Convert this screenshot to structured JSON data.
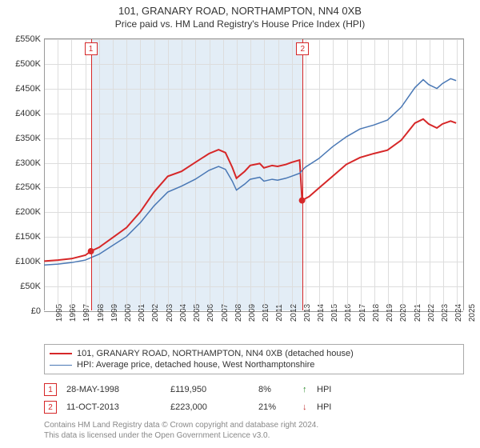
{
  "title_line1": "101, GRANARY ROAD, NORTHAMPTON, NN4 0XB",
  "title_line2": "Price paid vs. HM Land Registry's House Price Index (HPI)",
  "chart": {
    "type": "line",
    "background_color": "#ffffff",
    "grid_color": "#dddddd",
    "axis_color": "#999999",
    "x_years": [
      1995,
      1996,
      1997,
      1998,
      1999,
      2000,
      2001,
      2002,
      2003,
      2004,
      2005,
      2006,
      2007,
      2008,
      2009,
      2010,
      2011,
      2012,
      2013,
      2014,
      2015,
      2016,
      2017,
      2018,
      2019,
      2020,
      2021,
      2022,
      2023,
      2024,
      2025
    ],
    "xlim": [
      1995,
      2025.5
    ],
    "ylim": [
      0,
      550000
    ],
    "ytick_step": 50000,
    "yticks": [
      "£0",
      "£50K",
      "£100K",
      "£150K",
      "£200K",
      "£250K",
      "£300K",
      "£350K",
      "£400K",
      "£450K",
      "£500K",
      "£550K"
    ],
    "band_color": "#e3edf6",
    "band_from_year": 1998.4,
    "band_to_year": 2013.8,
    "series": [
      {
        "name": "property",
        "label": "101, GRANARY ROAD, NORTHAMPTON, NN4 0XB (detached house)",
        "color": "#d62728",
        "line_width": 2,
        "points": [
          [
            1995.0,
            100
          ],
          [
            1996.0,
            102
          ],
          [
            1997.0,
            105
          ],
          [
            1998.0,
            112
          ],
          [
            1998.4,
            120
          ],
          [
            1999.0,
            128
          ],
          [
            2000.0,
            148
          ],
          [
            2001.0,
            168
          ],
          [
            2002.0,
            200
          ],
          [
            2003.0,
            240
          ],
          [
            2004.0,
            272
          ],
          [
            2005.0,
            282
          ],
          [
            2006.0,
            300
          ],
          [
            2007.0,
            318
          ],
          [
            2007.7,
            326
          ],
          [
            2008.2,
            320
          ],
          [
            2008.7,
            290
          ],
          [
            2009.0,
            268
          ],
          [
            2009.6,
            282
          ],
          [
            2010.0,
            294
          ],
          [
            2010.7,
            298
          ],
          [
            2011.0,
            289
          ],
          [
            2011.6,
            294
          ],
          [
            2012.0,
            292
          ],
          [
            2012.6,
            296
          ],
          [
            2013.0,
            300
          ],
          [
            2013.6,
            305
          ],
          [
            2013.78,
            223
          ],
          [
            2014.3,
            231
          ],
          [
            2015.0,
            248
          ],
          [
            2016.0,
            272
          ],
          [
            2017.0,
            296
          ],
          [
            2018.0,
            310
          ],
          [
            2019.0,
            318
          ],
          [
            2020.0,
            325
          ],
          [
            2021.0,
            345
          ],
          [
            2022.0,
            380
          ],
          [
            2022.6,
            388
          ],
          [
            2023.0,
            378
          ],
          [
            2023.6,
            370
          ],
          [
            2024.0,
            378
          ],
          [
            2024.6,
            384
          ],
          [
            2025.0,
            380
          ]
        ],
        "markers": [
          {
            "year": 1998.4,
            "value": 120,
            "label": "1"
          },
          {
            "year": 2013.78,
            "value": 223,
            "label": "2"
          }
        ]
      },
      {
        "name": "hpi",
        "label": "HPI: Average price, detached house, West Northamptonshire",
        "color": "#4a78b5",
        "line_width": 1.5,
        "points": [
          [
            1995.0,
            92
          ],
          [
            1996.0,
            94
          ],
          [
            1997.0,
            97
          ],
          [
            1998.0,
            102
          ],
          [
            1999.0,
            114
          ],
          [
            2000.0,
            132
          ],
          [
            2001.0,
            150
          ],
          [
            2002.0,
            178
          ],
          [
            2003.0,
            212
          ],
          [
            2004.0,
            240
          ],
          [
            2005.0,
            252
          ],
          [
            2006.0,
            266
          ],
          [
            2007.0,
            284
          ],
          [
            2007.7,
            292
          ],
          [
            2008.2,
            286
          ],
          [
            2008.7,
            262
          ],
          [
            2009.0,
            244
          ],
          [
            2009.6,
            256
          ],
          [
            2010.0,
            266
          ],
          [
            2010.7,
            270
          ],
          [
            2011.0,
            262
          ],
          [
            2011.6,
            266
          ],
          [
            2012.0,
            264
          ],
          [
            2012.6,
            268
          ],
          [
            2013.0,
            272
          ],
          [
            2013.6,
            278
          ],
          [
            2014.0,
            290
          ],
          [
            2015.0,
            308
          ],
          [
            2016.0,
            332
          ],
          [
            2017.0,
            352
          ],
          [
            2018.0,
            368
          ],
          [
            2019.0,
            376
          ],
          [
            2020.0,
            386
          ],
          [
            2021.0,
            412
          ],
          [
            2022.0,
            452
          ],
          [
            2022.6,
            468
          ],
          [
            2023.0,
            458
          ],
          [
            2023.6,
            450
          ],
          [
            2024.0,
            460
          ],
          [
            2024.6,
            470
          ],
          [
            2025.0,
            466
          ]
        ]
      }
    ],
    "event_markers_top": [
      {
        "year": 1998.4,
        "label": "1",
        "color": "#d62728"
      },
      {
        "year": 2013.78,
        "label": "2",
        "color": "#d62728"
      }
    ]
  },
  "legend": {
    "items": [
      {
        "color": "#d62728",
        "width": 2,
        "label_path": "chart.series.0.label"
      },
      {
        "color": "#4a78b5",
        "width": 1.5,
        "label_path": "chart.series.1.label"
      }
    ]
  },
  "transactions": [
    {
      "num": "1",
      "color": "#d62728",
      "date": "28-MAY-1998",
      "price": "£119,950",
      "pct": "8%",
      "arrow": "↑",
      "arrow_color": "#2a8a2a",
      "suffix": "HPI"
    },
    {
      "num": "2",
      "color": "#d62728",
      "date": "11-OCT-2013",
      "price": "£223,000",
      "pct": "21%",
      "arrow": "↓",
      "arrow_color": "#c03030",
      "suffix": "HPI"
    }
  ],
  "footer_line1": "Contains HM Land Registry data © Crown copyright and database right 2024.",
  "footer_line2": "This data is licensed under the Open Government Licence v3.0."
}
